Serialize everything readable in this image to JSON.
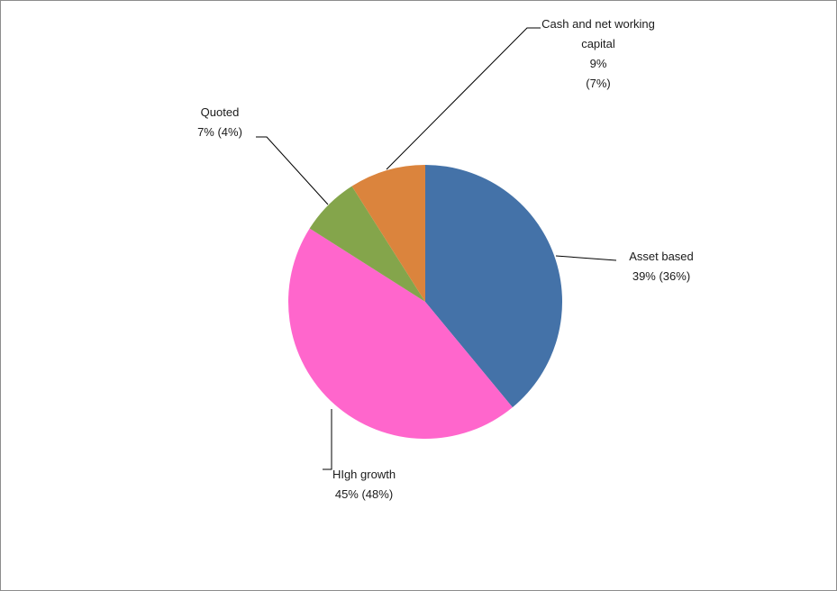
{
  "chart_data": {
    "type": "pie",
    "title": "",
    "slices": [
      {
        "name": "Asset based",
        "value": 39,
        "prior": "36%",
        "label_lines": [
          "Asset based",
          "39% (36%)"
        ],
        "color": "#4472A8"
      },
      {
        "name": "HIgh growth",
        "value": 45,
        "prior": "48%",
        "label_lines": [
          "HIgh growth",
          "45% (48%)"
        ],
        "color": "#FF66CC"
      },
      {
        "name": "Quoted",
        "value": 7,
        "prior": "4%",
        "label_lines": [
          "Quoted",
          "7% (4%)"
        ],
        "color": "#84A54B"
      },
      {
        "name": "Cash and net working capital",
        "value": 9,
        "prior": "7%",
        "label_lines": [
          "Cash and net working",
          "capital",
          "9%",
          "(7%)"
        ],
        "color": "#DB843D"
      }
    ],
    "start": "12 o'clock",
    "direction": "clockwise"
  }
}
